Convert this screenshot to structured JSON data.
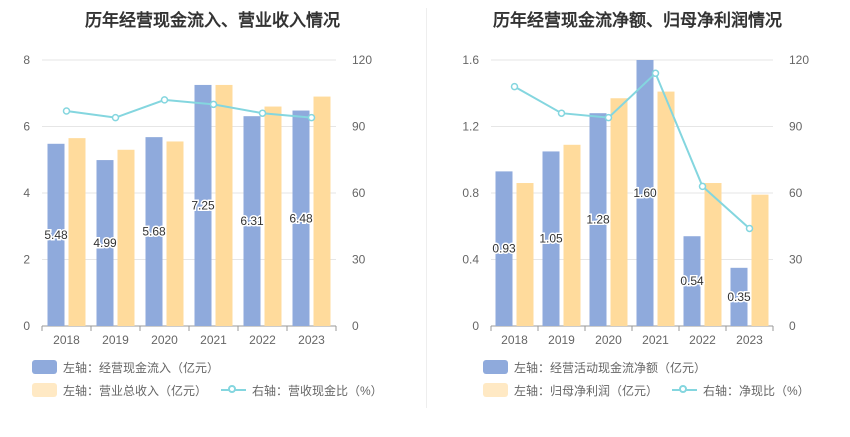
{
  "colors": {
    "bar_left": "#8faadc",
    "bar_right": "#ffdb9c",
    "line": "#84d6df"
  },
  "left": {
    "title": "历年经营现金流入、营业收入情况",
    "legend": {
      "bar1": "左轴：经营现金流入（亿元）",
      "bar2": "左轴：营业总收入（亿元）",
      "line": "右轴：营收现金比（%）"
    }
  },
  "right": {
    "title": "历年经营现金流净额、归母净利润情况",
    "legend": {
      "bar1": "左轴：经营活动现金流净额（亿元）",
      "bar2": "左轴：归母净利润（亿元）",
      "line": "右轴：净现比（%）"
    }
  },
  "chart_data": [
    {
      "type": "bar",
      "title": "历年经营现金流入、营业收入情况",
      "categories": [
        "2018",
        "2019",
        "2020",
        "2021",
        "2022",
        "2023"
      ],
      "y_left": {
        "lim": [
          0,
          8
        ],
        "ticks": [
          "0",
          "2",
          "4",
          "6",
          "8"
        ]
      },
      "y_right": {
        "lim": [
          0,
          120
        ],
        "ticks": [
          "0",
          "30",
          "60",
          "90",
          "120"
        ]
      },
      "grid": true,
      "series": [
        {
          "name": "左轴：经营现金流入（亿元）",
          "kind": "bar",
          "axis": "left",
          "values": [
            5.48,
            4.99,
            5.68,
            7.25,
            6.31,
            6.48
          ],
          "labels": [
            "5.48",
            "4.99",
            "5.68",
            "7.25",
            "6.31",
            "6.48"
          ]
        },
        {
          "name": "左轴：营业总收入（亿元）",
          "kind": "bar",
          "axis": "left",
          "values": [
            5.65,
            5.3,
            5.55,
            7.25,
            6.6,
            6.9
          ]
        },
        {
          "name": "右轴：营收现金比（%）",
          "kind": "line",
          "axis": "right",
          "values": [
            97,
            94,
            102,
            100,
            96,
            94
          ]
        }
      ]
    },
    {
      "type": "bar",
      "title": "历年经营现金流净额、归母净利润情况",
      "categories": [
        "2018",
        "2019",
        "2020",
        "2021",
        "2022",
        "2023"
      ],
      "y_left": {
        "lim": [
          0,
          1.6
        ],
        "ticks": [
          "0",
          "0.4",
          "0.8",
          "1.2",
          "1.6"
        ]
      },
      "y_right": {
        "lim": [
          0,
          120
        ],
        "ticks": [
          "0",
          "30",
          "60",
          "90",
          "120"
        ]
      },
      "grid": true,
      "series": [
        {
          "name": "左轴：经营活动现金流净额（亿元）",
          "kind": "bar",
          "axis": "left",
          "values": [
            0.93,
            1.05,
            1.28,
            1.6,
            0.54,
            0.35
          ],
          "labels": [
            "0.93",
            "1.05",
            "1.28",
            "1.60",
            "0.54",
            "0.35"
          ]
        },
        {
          "name": "左轴：归母净利润（亿元）",
          "kind": "bar",
          "axis": "left",
          "values": [
            0.86,
            1.09,
            1.37,
            1.41,
            0.86,
            0.79
          ]
        },
        {
          "name": "右轴：净现比（%）",
          "kind": "line",
          "axis": "right",
          "values": [
            108,
            96,
            94,
            114,
            63,
            44
          ]
        }
      ]
    }
  ]
}
